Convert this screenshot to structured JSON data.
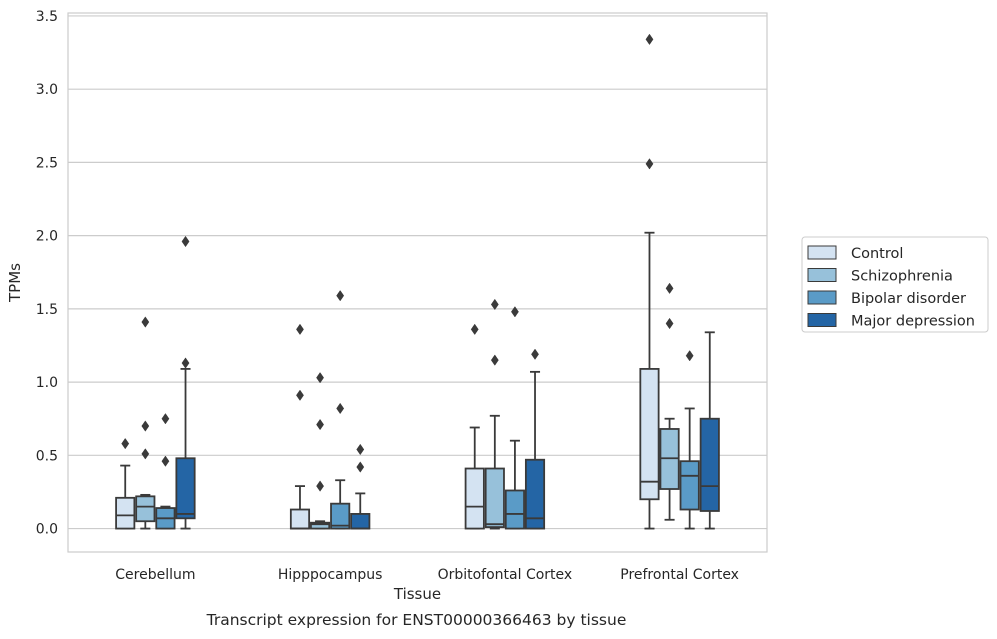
{
  "chart_data": {
    "type": "box",
    "caption": "Transcript expression for ENST00000366463 by tissue",
    "xlabel": "Tissue",
    "ylabel": "TPMs",
    "ylim": [
      -0.16,
      3.52
    ],
    "yticks": [
      "0.0",
      "0.5",
      "1.0",
      "1.5",
      "2.0",
      "2.5",
      "3.0",
      "3.5"
    ],
    "grid": "horizontal",
    "legend_position": "right",
    "categories": [
      "Cerebellum",
      "Hipppocampus",
      "Orbitofontal Cortex",
      "Prefrontal Cortex"
    ],
    "series": [
      {
        "name": "Control",
        "color": "#d4e3f2",
        "boxes": [
          {
            "q1": 0.0,
            "median": 0.09,
            "q3": 0.21,
            "whisker_low": 0.0,
            "whisker_high": 0.43,
            "outliers": [
              0.58
            ]
          },
          {
            "q1": 0.0,
            "median": 0.0,
            "q3": 0.13,
            "whisker_low": 0.0,
            "whisker_high": 0.29,
            "outliers": [
              0.91,
              1.36
            ]
          },
          {
            "q1": 0.0,
            "median": 0.15,
            "q3": 0.41,
            "whisker_low": 0.0,
            "whisker_high": 0.69,
            "outliers": [
              1.36
            ]
          },
          {
            "q1": 0.2,
            "median": 0.32,
            "q3": 1.09,
            "whisker_low": 0.0,
            "whisker_high": 2.02,
            "outliers": [
              2.49,
              3.34
            ]
          }
        ]
      },
      {
        "name": "Schizophrenia",
        "color": "#97c1da",
        "boxes": [
          {
            "q1": 0.05,
            "median": 0.15,
            "q3": 0.22,
            "whisker_low": 0.0,
            "whisker_high": 0.23,
            "outliers": [
              0.51,
              0.7,
              1.41
            ]
          },
          {
            "q1": 0.0,
            "median": 0.03,
            "q3": 0.04,
            "whisker_low": 0.0,
            "whisker_high": 0.05,
            "outliers": [
              0.29,
              0.71,
              1.03
            ]
          },
          {
            "q1": 0.01,
            "median": 0.03,
            "q3": 0.41,
            "whisker_low": 0.0,
            "whisker_high": 0.77,
            "outliers": [
              1.15,
              1.53
            ]
          },
          {
            "q1": 0.27,
            "median": 0.48,
            "q3": 0.68,
            "whisker_low": 0.06,
            "whisker_high": 0.75,
            "outliers": [
              1.4,
              1.64
            ]
          }
        ]
      },
      {
        "name": "Bipolar disorder",
        "color": "#5a9bc7",
        "boxes": [
          {
            "q1": 0.0,
            "median": 0.07,
            "q3": 0.14,
            "whisker_low": 0.0,
            "whisker_high": 0.15,
            "outliers": [
              0.46,
              0.75
            ]
          },
          {
            "q1": 0.0,
            "median": 0.02,
            "q3": 0.17,
            "whisker_low": 0.0,
            "whisker_high": 0.33,
            "outliers": [
              0.82,
              1.59
            ]
          },
          {
            "q1": 0.0,
            "median": 0.1,
            "q3": 0.26,
            "whisker_low": 0.0,
            "whisker_high": 0.6,
            "outliers": [
              1.48
            ]
          },
          {
            "q1": 0.13,
            "median": 0.36,
            "q3": 0.46,
            "whisker_low": 0.0,
            "whisker_high": 0.82,
            "outliers": [
              1.18
            ]
          }
        ]
      },
      {
        "name": "Major depression",
        "color": "#2465a5",
        "boxes": [
          {
            "q1": 0.07,
            "median": 0.1,
            "q3": 0.48,
            "whisker_low": 0.0,
            "whisker_high": 1.09,
            "outliers": [
              1.13,
              1.96
            ]
          },
          {
            "q1": 0.0,
            "median": 0.0,
            "q3": 0.1,
            "whisker_low": 0.0,
            "whisker_high": 0.24,
            "outliers": [
              0.42,
              0.54
            ]
          },
          {
            "q1": 0.0,
            "median": 0.07,
            "q3": 0.47,
            "whisker_low": 0.0,
            "whisker_high": 1.07,
            "outliers": [
              1.19
            ]
          },
          {
            "q1": 0.12,
            "median": 0.29,
            "q3": 0.75,
            "whisker_low": 0.0,
            "whisker_high": 1.34,
            "outliers": []
          }
        ]
      }
    ]
  }
}
